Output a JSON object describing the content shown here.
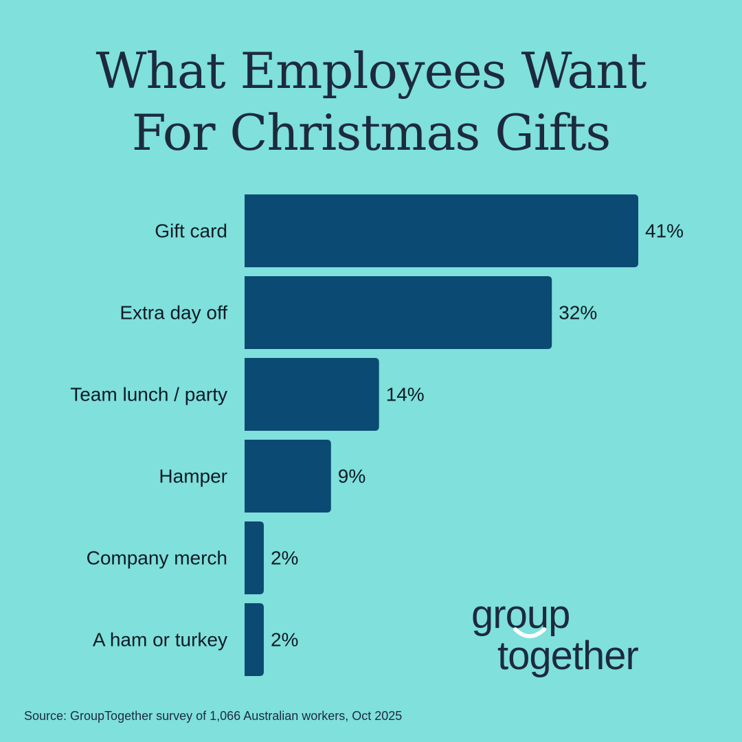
{
  "title_line1": "What Employees Want",
  "title_line2": "For Christmas Gifts",
  "source": "Source: GroupTogether survey of 1,066 Australian workers, Oct 2025",
  "logo": {
    "line1": "group",
    "line2": "together"
  },
  "colors": {
    "background": "#7fe0dc",
    "bar": "#0b4a72",
    "text": "#1d2a3e"
  },
  "chart_data": {
    "type": "bar",
    "orientation": "horizontal",
    "categories": [
      "Gift card",
      "Extra day off",
      "Team lunch / party",
      "Hamper",
      "Company merch",
      "A ham or turkey"
    ],
    "values": [
      41,
      32,
      14,
      9,
      2,
      2
    ],
    "value_labels": [
      "41%",
      "32%",
      "14%",
      "9%",
      "2%",
      "2%"
    ],
    "xlim": [
      0,
      41
    ],
    "grid": false
  }
}
